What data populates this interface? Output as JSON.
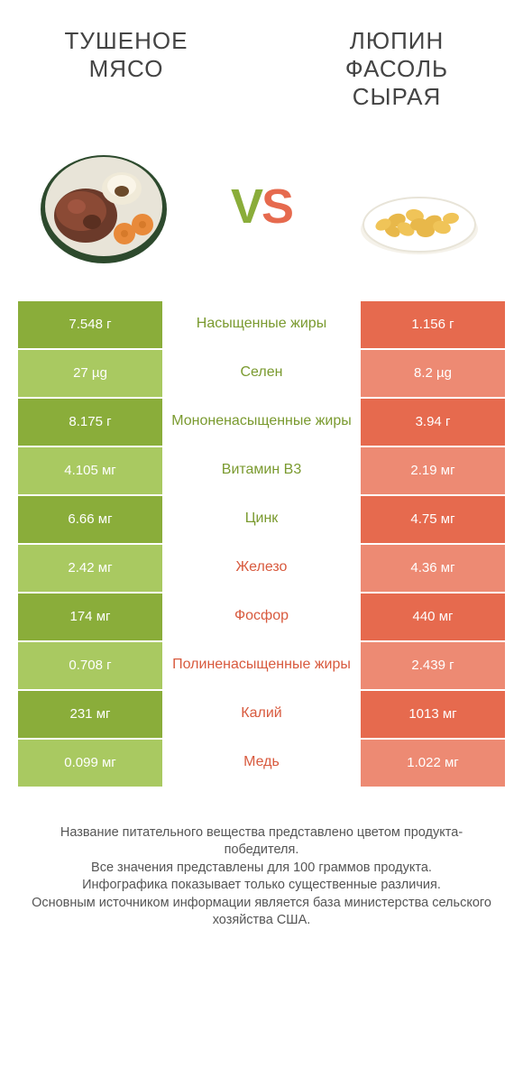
{
  "colors": {
    "green_dark": "#8aad3a",
    "green_light": "#a9c961",
    "orange_dark": "#e66a4e",
    "orange_light": "#ed8a73",
    "mid_green_text": "#7a9a2f",
    "mid_orange_text": "#d85a3e"
  },
  "left_title": "ТУШЕНОЕ МЯСО",
  "right_title": "ЛЮПИН ФАСОЛЬ СЫРАЯ",
  "vs": {
    "v": "V",
    "s": "S"
  },
  "rows": [
    {
      "left": "7.548 г",
      "mid": "Насыщенные жиры",
      "right": "1.156 г",
      "winner": "left"
    },
    {
      "left": "27 µg",
      "mid": "Селен",
      "right": "8.2 µg",
      "winner": "left"
    },
    {
      "left": "8.175 г",
      "mid": "Мононенасыщенные жиры",
      "right": "3.94 г",
      "winner": "left"
    },
    {
      "left": "4.105 мг",
      "mid": "Витамин B3",
      "right": "2.19 мг",
      "winner": "left"
    },
    {
      "left": "6.66 мг",
      "mid": "Цинк",
      "right": "4.75 мг",
      "winner": "left"
    },
    {
      "left": "2.42 мг",
      "mid": "Железо",
      "right": "4.36 мг",
      "winner": "right"
    },
    {
      "left": "174 мг",
      "mid": "Фосфор",
      "right": "440 мг",
      "winner": "right"
    },
    {
      "left": "0.708 г",
      "mid": "Полиненасыщенные жиры",
      "right": "2.439 г",
      "winner": "right"
    },
    {
      "left": "231 мг",
      "mid": "Калий",
      "right": "1013 мг",
      "winner": "right"
    },
    {
      "left": "0.099 мг",
      "mid": "Медь",
      "right": "1.022 мг",
      "winner": "right"
    }
  ],
  "footer_lines": [
    "Название питательного вещества представлено цветом продукта-победителя.",
    "Все значения представлены для 100 граммов продукта.",
    "Инфографика показывает только существенные различия.",
    "Основным источником информации является база министерства сельского хозяйства США."
  ]
}
